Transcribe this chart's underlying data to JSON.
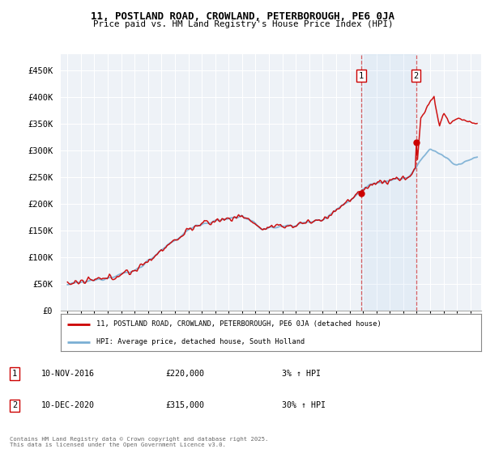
{
  "title_line1": "11, POSTLAND ROAD, CROWLAND, PETERBOROUGH, PE6 0JA",
  "title_line2": "Price paid vs. HM Land Registry's House Price Index (HPI)",
  "ylabel_ticks": [
    "£0",
    "£50K",
    "£100K",
    "£150K",
    "£200K",
    "£250K",
    "£300K",
    "£350K",
    "£400K",
    "£450K"
  ],
  "ytick_values": [
    0,
    50000,
    100000,
    150000,
    200000,
    250000,
    300000,
    350000,
    400000,
    450000
  ],
  "ylim": [
    0,
    480000
  ],
  "xlim_start": 1994.5,
  "xlim_end": 2025.8,
  "background_color": "#ffffff",
  "plot_bg_color": "#eef2f7",
  "grid_color": "#ffffff",
  "red_line_color": "#cc0000",
  "blue_line_color": "#7aafd4",
  "sale1_x": 2016.87,
  "sale1_y": 220000,
  "sale2_x": 2020.95,
  "sale2_y": 315000,
  "legend_line1": "11, POSTLAND ROAD, CROWLAND, PETERBOROUGH, PE6 0JA (detached house)",
  "legend_line2": "HPI: Average price, detached house, South Holland",
  "footer": "Contains HM Land Registry data © Crown copyright and database right 2025.\nThis data is licensed under the Open Government Licence v3.0."
}
